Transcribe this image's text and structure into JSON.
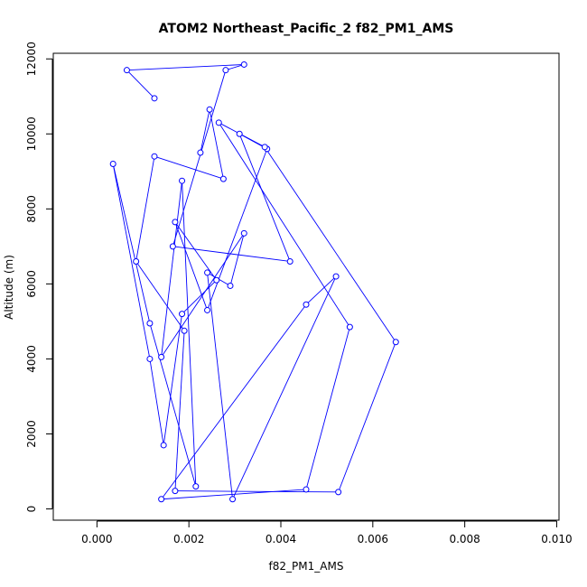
{
  "chart_data": {
    "type": "line",
    "title": "ATOM2 Northeast_Pacific_2 f82_PM1_AMS",
    "xlabel": "f82_PM1_AMS",
    "ylabel": "Altitude (m)",
    "xlim": [
      -0.00095,
      0.01005
    ],
    "ylim": [
      -300,
      12150
    ],
    "xticks": [
      0.0,
      0.002,
      0.004,
      0.006,
      0.008,
      0.01
    ],
    "xtick_labels": [
      "0.000",
      "0.002",
      "0.004",
      "0.006",
      "0.008",
      "0.010"
    ],
    "yticks": [
      0,
      2000,
      4000,
      6000,
      8000,
      10000,
      12000
    ],
    "ytick_labels": [
      "0",
      "2000",
      "4000",
      "6000",
      "8000",
      "10000",
      "12000"
    ],
    "grid": false,
    "series_color": "#0000ff",
    "series": [
      {
        "marker": "open-circle",
        "x": [
          0.00125,
          0.00065,
          0.0032,
          0.0028,
          0.00165,
          0.0042,
          0.0031,
          0.0037,
          0.0024,
          0.0017,
          0.0026,
          0.00185,
          0.00145,
          0.00115,
          0.00035,
          0.00115,
          0.00215,
          0.00185,
          0.0014,
          0.0032,
          0.0029,
          0.0024,
          0.00295,
          0.0052,
          0.00455,
          0.0014,
          0.00455,
          0.0055,
          0.00265,
          0.00365,
          0.0065,
          0.00525,
          0.0017,
          0.0019,
          0.00085,
          0.00125,
          0.00275,
          0.00245,
          0.00225
        ],
        "y": [
          10950,
          11700,
          11850,
          11700,
          7000,
          6600,
          10000,
          9600,
          5300,
          7650,
          6100,
          5200,
          1700,
          4000,
          9200,
          4950,
          600,
          8750,
          4050,
          7350,
          5950,
          6300,
          260,
          6200,
          5450,
          260,
          520,
          4850,
          10300,
          9650,
          4450,
          450,
          480,
          4750,
          6600,
          9400,
          8800,
          10650,
          9500
        ]
      }
    ]
  }
}
